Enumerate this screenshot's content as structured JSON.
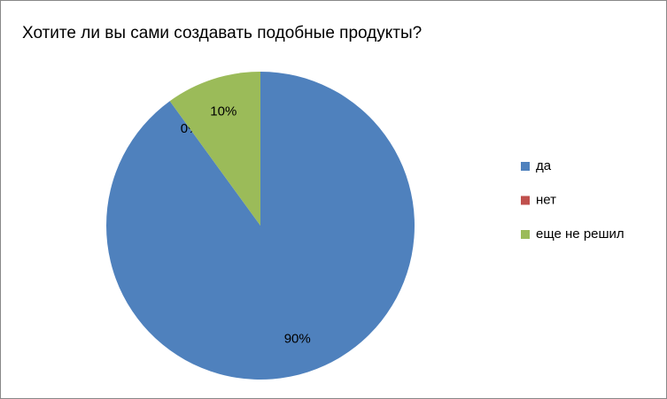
{
  "chart_data": {
    "type": "pie",
    "title": "Хотите ли вы сами создавать подобные продукты?",
    "categories": [
      "да",
      "нет",
      "еще не решил"
    ],
    "values": [
      90,
      0,
      10
    ],
    "value_labels": [
      "90%",
      "0%",
      "10%"
    ],
    "colors": [
      "#4f81bd",
      "#c0504d",
      "#9bbb59"
    ],
    "legend": "right"
  }
}
